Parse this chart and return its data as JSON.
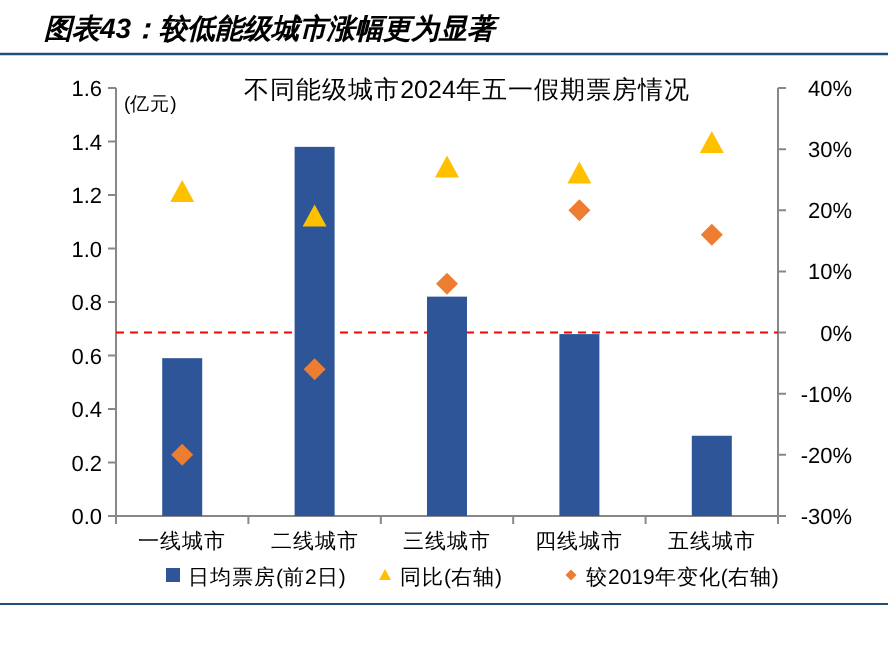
{
  "chart_data": {
    "type": "bar",
    "title": "图表43：较低能级城市涨幅更为显著",
    "subtitle": "不同能级城市2024年五一假期票房情况",
    "ylabel": "(亿元)",
    "categories": [
      "一线城市",
      "二线城市",
      "三线城市",
      "四线城市",
      "五线城市"
    ],
    "series": [
      {
        "name": "日均票房(前2日)",
        "color": "#2e5597",
        "values": [
          0.59,
          1.38,
          0.82,
          0.68,
          0.3
        ]
      },
      {
        "name": "同比(右轴)",
        "type": "scatter",
        "marker": "triangle",
        "axis": "y2",
        "color": "#ffc000",
        "values": [
          23,
          19,
          27,
          26,
          31
        ]
      },
      {
        "name": "较2019年变化(右轴)",
        "type": "scatter",
        "marker": "diamond",
        "axis": "y2",
        "color": "#ed7d31",
        "values": [
          -20,
          -6,
          8,
          20,
          16
        ]
      }
    ],
    "ylim": [
      0,
      1.6
    ],
    "yticks": [
      {
        "value": 0,
        "label": "0.0"
      },
      {
        "value": 0.2,
        "label": "0.2"
      },
      {
        "value": 0.4,
        "label": "0.4"
      },
      {
        "value": 0.6,
        "label": "0.6"
      },
      {
        "value": 0.8,
        "label": "0.8"
      },
      {
        "value": 1.0,
        "label": "1.0"
      },
      {
        "value": 1.2,
        "label": "1.2"
      },
      {
        "value": 1.4,
        "label": "1.4"
      },
      {
        "value": 1.6,
        "label": "1.6"
      }
    ],
    "y2lim": [
      -30,
      40
    ],
    "y2ticks": [
      {
        "value": -30,
        "label": "-30%"
      },
      {
        "value": -20,
        "label": "-20%"
      },
      {
        "value": -10,
        "label": "-10%"
      },
      {
        "value": 0,
        "label": "0%"
      },
      {
        "value": 10,
        "label": "10%"
      },
      {
        "value": 20,
        "label": "20%"
      },
      {
        "value": 30,
        "label": "30%"
      },
      {
        "value": 40,
        "label": "40%"
      }
    ],
    "ref_lines": [
      {
        "axis": "y2",
        "value": 0,
        "color": "#ff0000",
        "line_style": "dashed"
      }
    ],
    "legend": "bottom"
  }
}
